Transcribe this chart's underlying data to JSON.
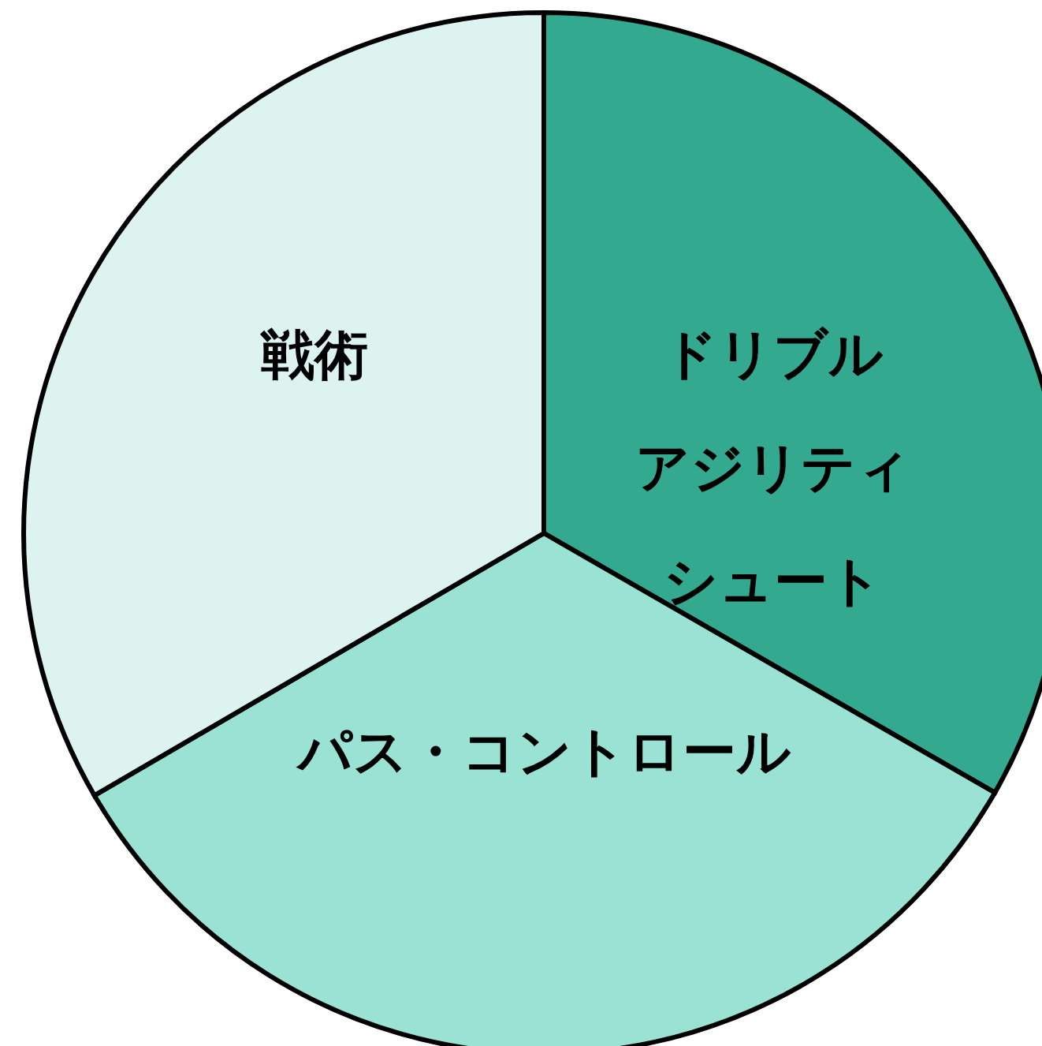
{
  "chart_data": {
    "type": "pie",
    "categories": [
      "ドリブルアジリティシュート",
      "パス・コントロール",
      "戦術"
    ],
    "values": [
      33.3,
      33.3,
      33.4
    ],
    "colors": [
      "#33a990",
      "#99e2d4",
      "#dcf3ef"
    ]
  }
}
